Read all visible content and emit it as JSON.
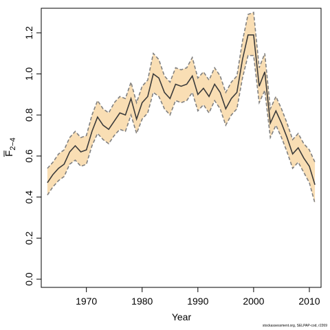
{
  "chart_data": {
    "type": "line",
    "title": "",
    "xlabel": "Year",
    "ylabel": {
      "main": "F",
      "subscript": "2−4"
    },
    "xlim": [
      1961.9,
      2012.1
    ],
    "ylim": [
      -0.04,
      1.32
    ],
    "xticks": [
      1970,
      1980,
      1990,
      2000,
      2010
    ],
    "yticks": [
      0.0,
      0.2,
      0.4,
      0.6,
      0.8,
      1.0,
      1.2
    ],
    "ytick_labels": [
      "0.0",
      "0.2",
      "0.4",
      "0.6",
      "0.8",
      "1.0",
      "1.2"
    ],
    "grid": false,
    "colors": {
      "band_fill": "#f9deb4",
      "band_edge": "#7f7f7f",
      "line": "#3a3a3a"
    },
    "x": [
      1963,
      1964,
      1965,
      1966,
      1967,
      1968,
      1969,
      1970,
      1971,
      1972,
      1973,
      1974,
      1975,
      1976,
      1977,
      1978,
      1979,
      1980,
      1981,
      1982,
      1983,
      1984,
      1985,
      1986,
      1987,
      1988,
      1989,
      1990,
      1991,
      1992,
      1993,
      1994,
      1995,
      1996,
      1997,
      1998,
      1999,
      2000,
      2001,
      2002,
      2003,
      2004,
      2005,
      2006,
      2007,
      2008,
      2009,
      2010,
      2011
    ],
    "series": [
      {
        "role": "estimate",
        "values": [
          0.47,
          0.51,
          0.54,
          0.56,
          0.62,
          0.65,
          0.62,
          0.63,
          0.72,
          0.79,
          0.75,
          0.73,
          0.77,
          0.81,
          0.8,
          0.88,
          0.78,
          0.86,
          0.89,
          1.0,
          0.98,
          0.91,
          0.88,
          0.95,
          0.94,
          0.95,
          0.99,
          0.9,
          0.93,
          0.89,
          0.95,
          0.91,
          0.83,
          0.88,
          0.91,
          1.07,
          1.19,
          1.19,
          0.94,
          1.01,
          0.76,
          0.82,
          0.76,
          0.69,
          0.61,
          0.64,
          0.59,
          0.55,
          0.46
        ]
      },
      {
        "role": "upper",
        "values": [
          0.54,
          0.57,
          0.61,
          0.63,
          0.69,
          0.72,
          0.69,
          0.7,
          0.8,
          0.87,
          0.83,
          0.81,
          0.86,
          0.89,
          0.88,
          0.96,
          0.86,
          0.94,
          0.97,
          1.1,
          1.07,
          0.99,
          0.96,
          1.03,
          1.02,
          1.03,
          1.08,
          0.98,
          1.01,
          0.97,
          1.03,
          0.99,
          0.91,
          0.96,
          0.99,
          1.16,
          1.29,
          1.3,
          1.03,
          1.1,
          0.83,
          0.89,
          0.83,
          0.76,
          0.68,
          0.71,
          0.66,
          0.63,
          0.57
        ]
      },
      {
        "role": "lower",
        "values": [
          0.41,
          0.45,
          0.48,
          0.5,
          0.56,
          0.58,
          0.55,
          0.56,
          0.65,
          0.71,
          0.68,
          0.66,
          0.7,
          0.73,
          0.72,
          0.8,
          0.71,
          0.78,
          0.81,
          0.91,
          0.89,
          0.83,
          0.8,
          0.87,
          0.86,
          0.87,
          0.91,
          0.82,
          0.85,
          0.81,
          0.87,
          0.83,
          0.75,
          0.8,
          0.83,
          0.98,
          1.09,
          1.09,
          0.86,
          0.92,
          0.69,
          0.75,
          0.69,
          0.62,
          0.54,
          0.57,
          0.52,
          0.47,
          0.37
        ]
      }
    ]
  },
  "footer": {
    "credit": "stockassessment.org, SELPAP-cod, r2269"
  }
}
